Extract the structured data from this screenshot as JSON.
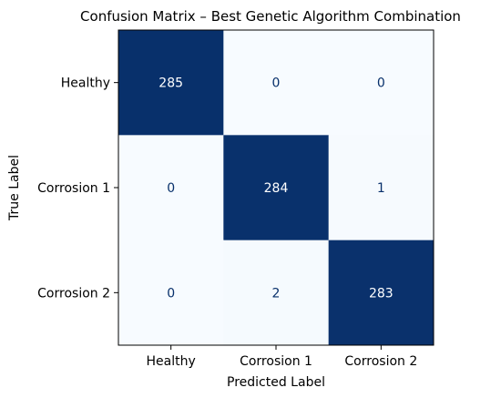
{
  "chart_data": {
    "type": "heatmap",
    "title": "Confusion Matrix – Best Genetic Algorithm Combination",
    "xlabel": "Predicted Label",
    "ylabel": "True Label",
    "x_categories": [
      "Healthy",
      "Corrosion 1",
      "Corrosion 2"
    ],
    "y_categories": [
      "Healthy",
      "Corrosion 1",
      "Corrosion 2"
    ],
    "values": [
      [
        285,
        0,
        0
      ],
      [
        0,
        284,
        1
      ],
      [
        0,
        2,
        283
      ]
    ],
    "colormap": "Blues",
    "low_color": "#f7fbff",
    "high_color": "#08306b",
    "text_dark": "#08306b",
    "text_light": "#ffffff",
    "grid": false,
    "colorbar": false
  }
}
